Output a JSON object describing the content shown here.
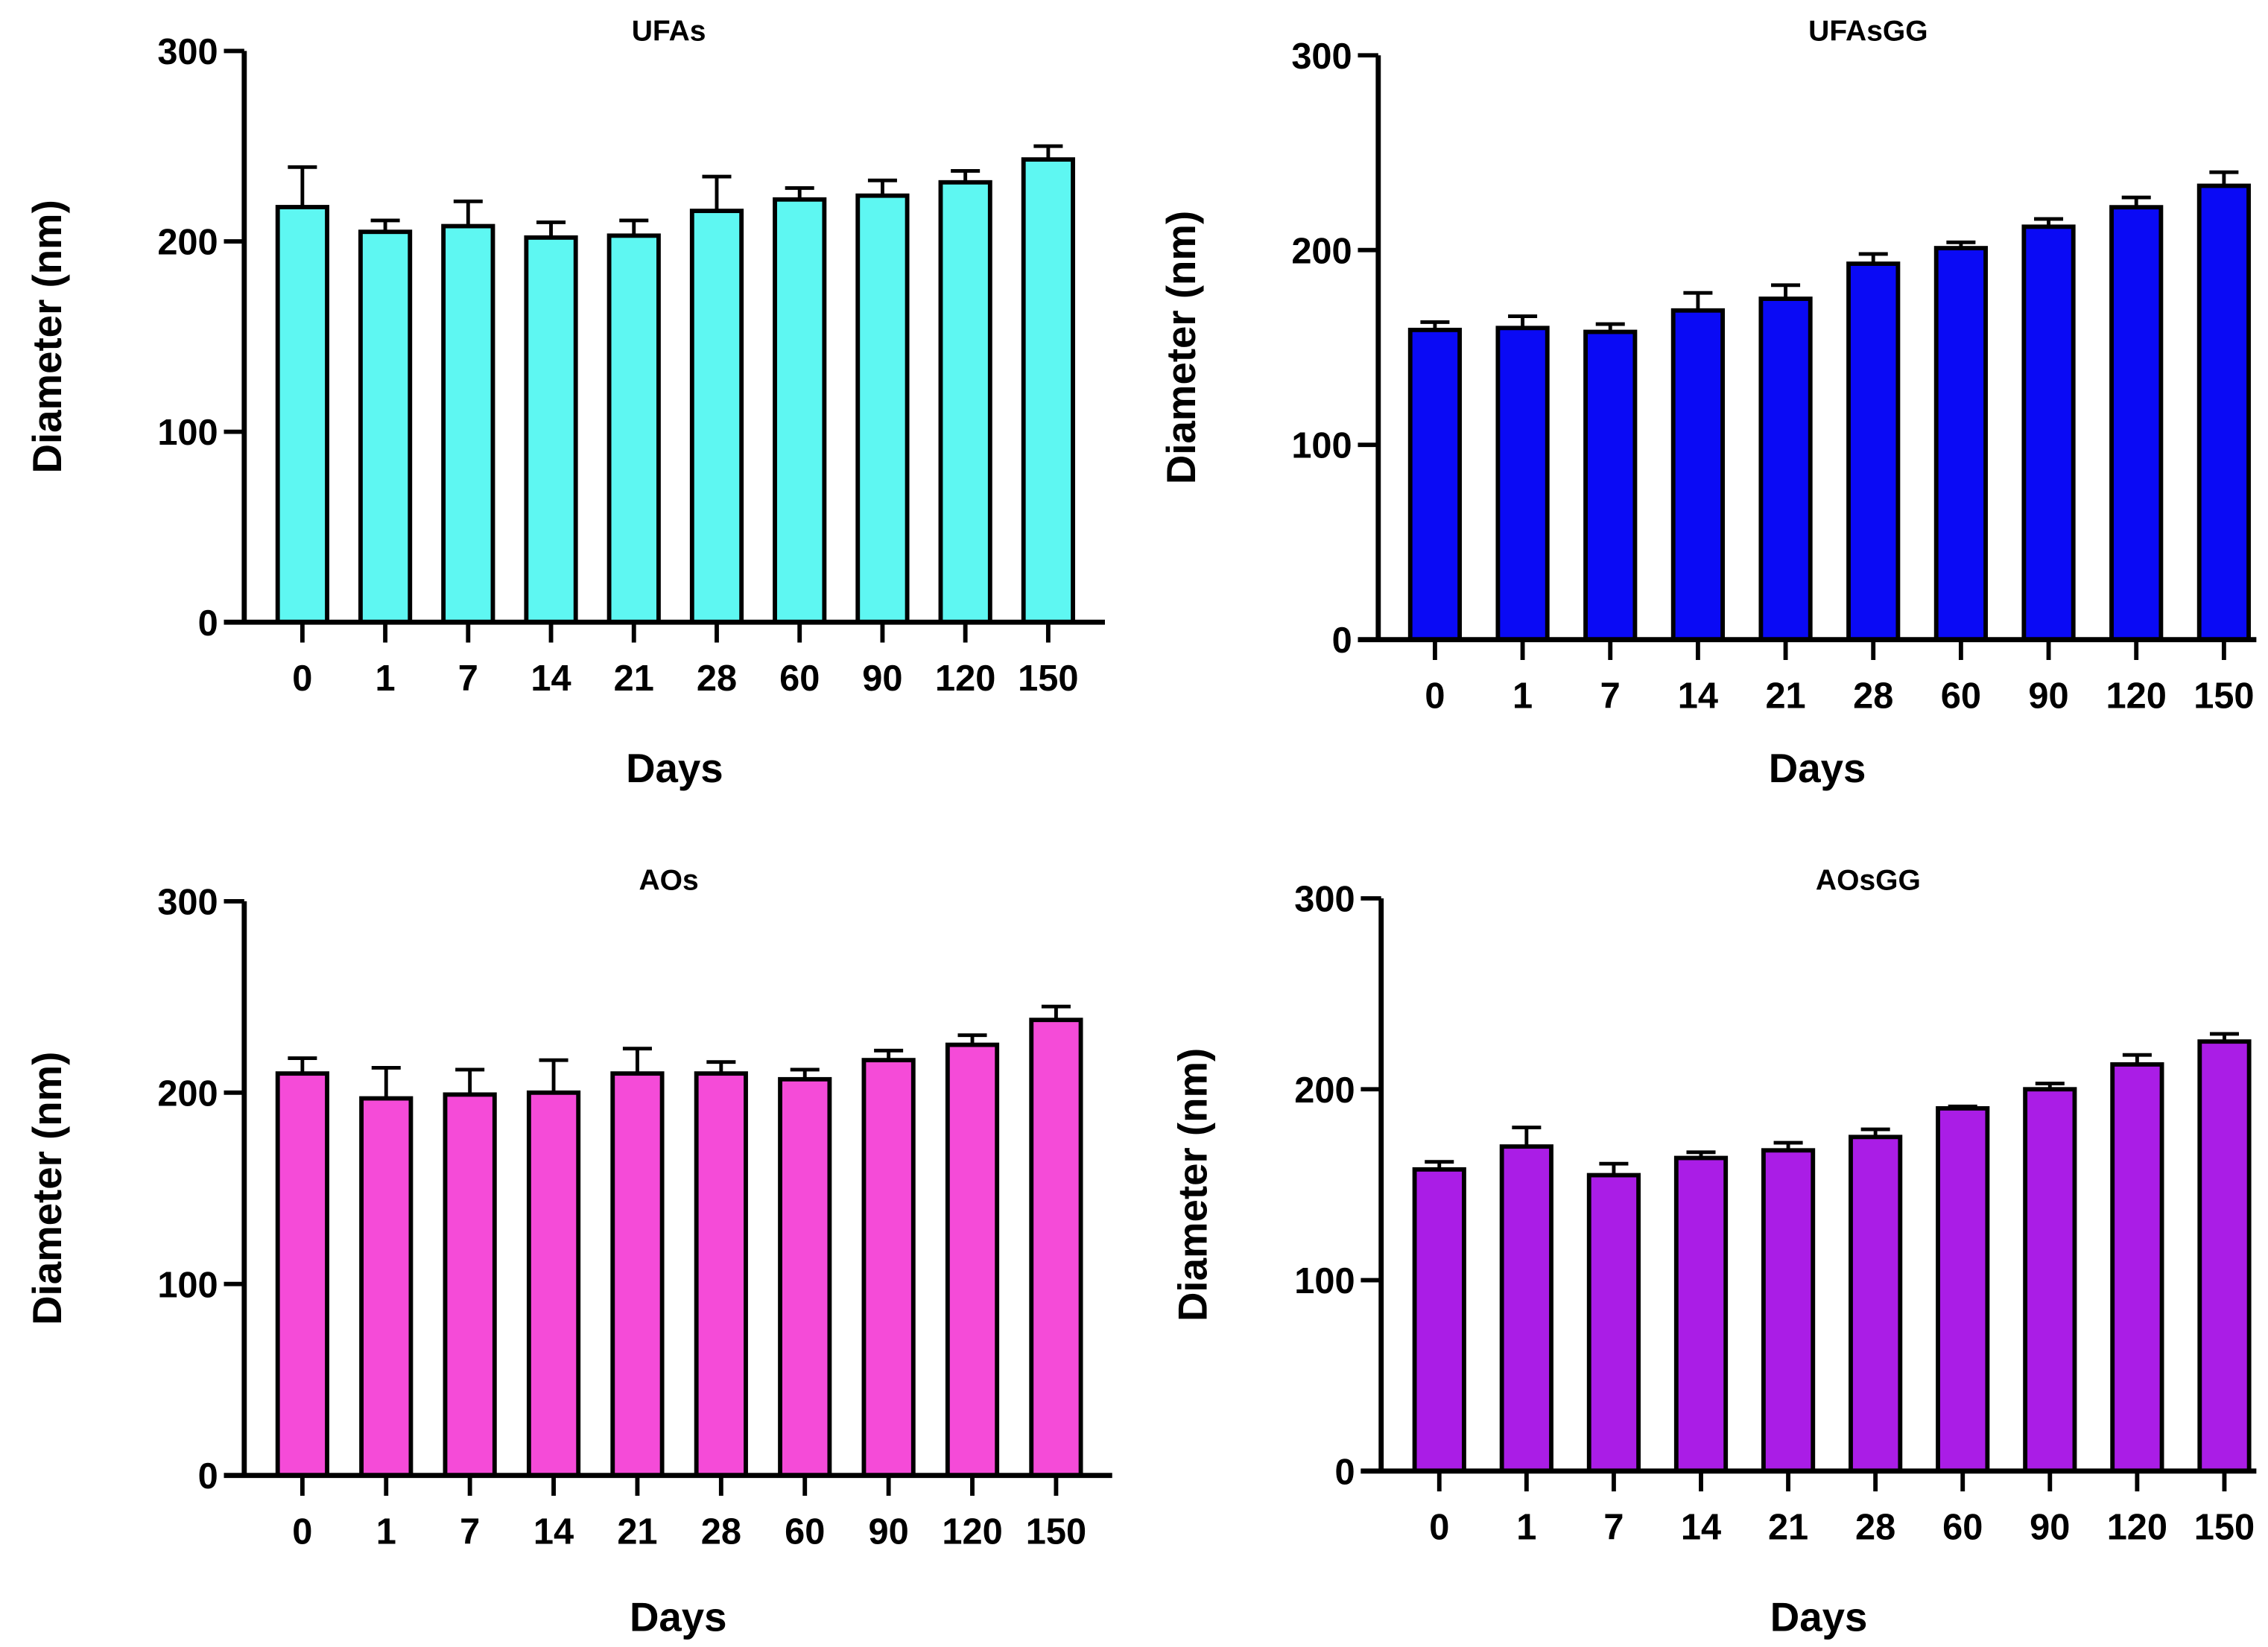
{
  "chart_data": [
    {
      "type": "bar",
      "title": "UFAs",
      "xlabel": "Days",
      "ylabel": "Diameter (nm)",
      "ylim": [
        0,
        300
      ],
      "yticks": [
        0,
        100,
        200,
        300
      ],
      "categories": [
        "0",
        "1",
        "7",
        "14",
        "21",
        "28",
        "60",
        "90",
        "120",
        "150"
      ],
      "values": [
        218,
        205,
        208,
        202,
        203,
        216,
        222,
        224,
        231,
        243
      ],
      "error_upper": [
        239,
        211,
        221,
        210,
        211,
        234,
        228,
        232,
        237,
        250
      ],
      "color": "#5ef7f2"
    },
    {
      "type": "bar",
      "title": "UFAsGG",
      "xlabel": "Days",
      "ylabel": "Diameter (nm)",
      "ylim": [
        0,
        300
      ],
      "yticks": [
        0,
        100,
        200,
        300
      ],
      "categories": [
        "0",
        "1",
        "7",
        "14",
        "21",
        "28",
        "60",
        "90",
        "120",
        "150"
      ],
      "values": [
        159,
        160,
        158,
        169,
        175,
        193,
        201,
        212,
        222,
        233
      ],
      "error_upper": [
        163,
        166,
        162,
        178,
        182,
        198,
        204,
        216,
        227,
        240
      ],
      "color": "#0a0af5"
    },
    {
      "type": "bar",
      "title": "AOs",
      "xlabel": "Days",
      "ylabel": "Diameter (nm)",
      "ylim": [
        0,
        300
      ],
      "yticks": [
        0,
        100,
        200,
        300
      ],
      "categories": [
        "0",
        "1",
        "7",
        "14",
        "21",
        "28",
        "60",
        "90",
        "120",
        "150"
      ],
      "values": [
        210,
        197,
        199,
        200,
        210,
        210,
        207,
        217,
        225,
        238
      ],
      "error_upper": [
        218,
        213,
        212,
        217,
        223,
        216,
        212,
        222,
        230,
        245
      ],
      "color": "#f54bd8"
    },
    {
      "type": "bar",
      "title": "AOsGG",
      "xlabel": "Days",
      "ylabel": "Diameter (nm)",
      "ylim": [
        0,
        300
      ],
      "yticks": [
        0,
        100,
        200,
        300
      ],
      "categories": [
        "0",
        "1",
        "7",
        "14",
        "21",
        "28",
        "60",
        "90",
        "120",
        "150"
      ],
      "values": [
        158,
        170,
        155,
        164,
        168,
        175,
        190,
        200,
        213,
        225
      ],
      "error_upper": [
        162,
        180,
        161,
        167,
        172,
        179,
        191,
        203,
        218,
        229
      ],
      "color": "#aa1de6"
    }
  ]
}
